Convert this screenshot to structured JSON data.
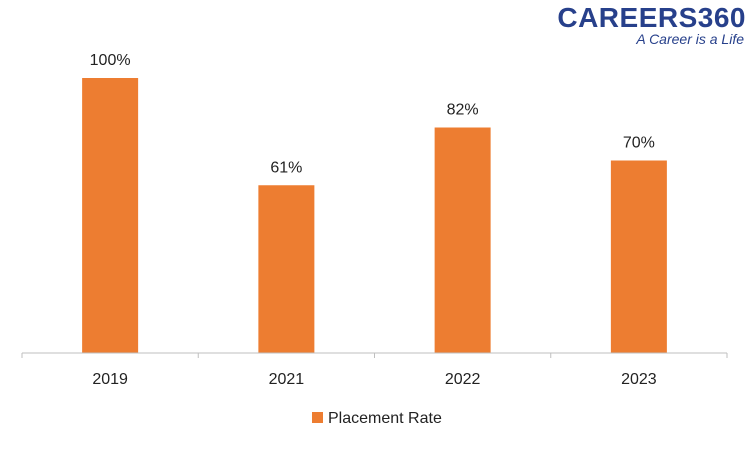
{
  "logo": {
    "text": "CAREERS360",
    "tagline": "A Career is a Life"
  },
  "colors": {
    "bar": "#ED7D31",
    "axis": "#BFBFBF",
    "logo": "#27408B"
  },
  "chart_data": {
    "type": "bar",
    "categories": [
      "2019",
      "2021",
      "2022",
      "2023"
    ],
    "series": [
      {
        "name": "Placement Rate",
        "values": [
          100,
          61,
          82,
          70
        ]
      }
    ],
    "data_labels": [
      "100%",
      "61%",
      "82%",
      "70%"
    ],
    "ylim": [
      0,
      100
    ],
    "grid": false,
    "legend": "bottom-center",
    "title": "",
    "xlabel": "",
    "ylabel": ""
  }
}
